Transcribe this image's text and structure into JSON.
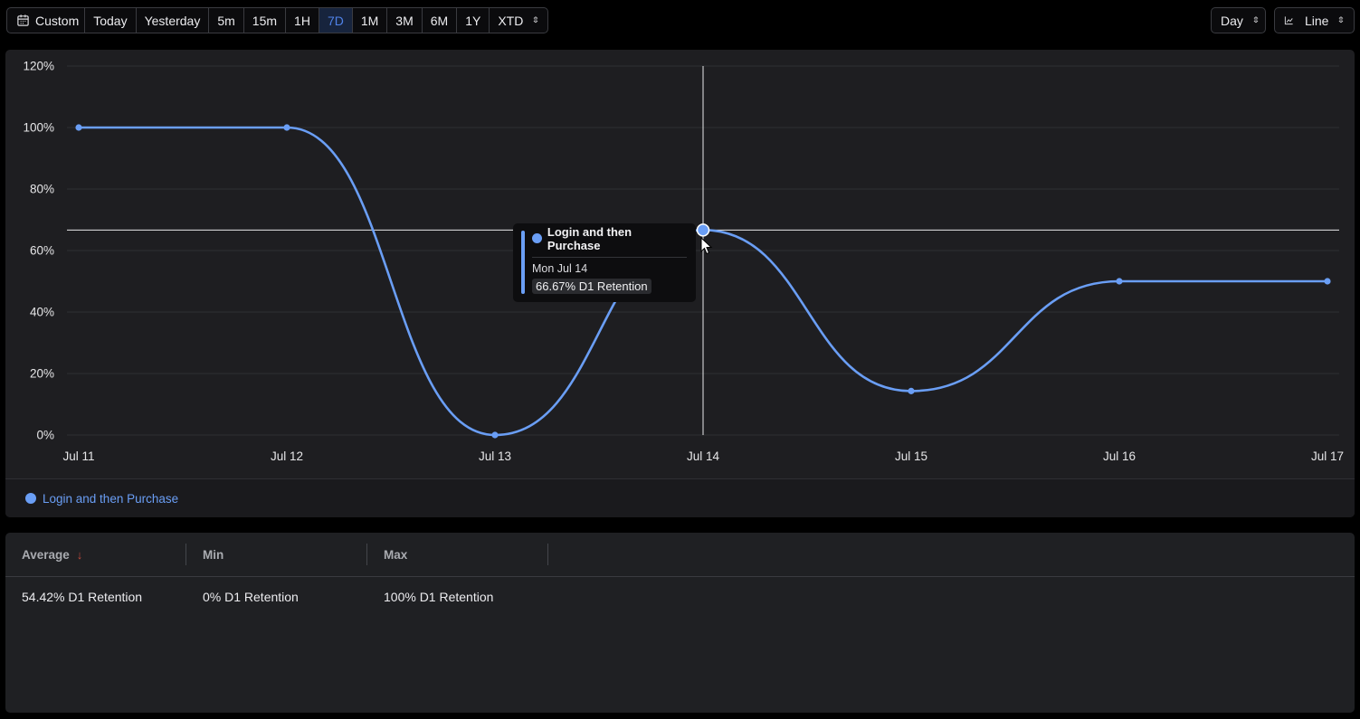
{
  "toolbar": {
    "custom_label": "Custom",
    "ranges": [
      "Today",
      "Yesterday",
      "5m",
      "15m",
      "1H",
      "7D",
      "1M",
      "3M",
      "6M",
      "1Y",
      "XTD"
    ],
    "active_range": "7D",
    "interval_label": "Day",
    "chart_type_label": "Line",
    "icons": {
      "calendar": "calendar-icon",
      "chart": "line-chart-icon",
      "updown": "chevron-updown-icon"
    }
  },
  "chart_data": {
    "type": "line",
    "x": [
      "Jul 11",
      "Jul 12",
      "Jul 13",
      "Jul 14",
      "Jul 15",
      "Jul 16",
      "Jul 17"
    ],
    "series": [
      {
        "name": "Login and then Purchase",
        "color": "#6a9ef5",
        "values": [
          100,
          100,
          0,
          66.67,
          14.3,
          50,
          50
        ]
      }
    ],
    "y_ticks": [
      "0%",
      "20%",
      "40%",
      "60%",
      "80%",
      "100%",
      "120%"
    ],
    "ylim": [
      0,
      120
    ],
    "grid": true,
    "legend": "bottom-left",
    "hover_index": 3
  },
  "tooltip": {
    "series_name": "Login and then Purchase",
    "date": "Mon Jul 14",
    "value": "66.67% D1 Retention"
  },
  "legend": {
    "label": "Login and then Purchase"
  },
  "stats": {
    "headers": [
      "Average",
      "Min",
      "Max"
    ],
    "sort_arrow": "↓",
    "values": [
      "54.42% D1 Retention",
      "0% D1 Retention",
      "100% D1 Retention"
    ]
  }
}
